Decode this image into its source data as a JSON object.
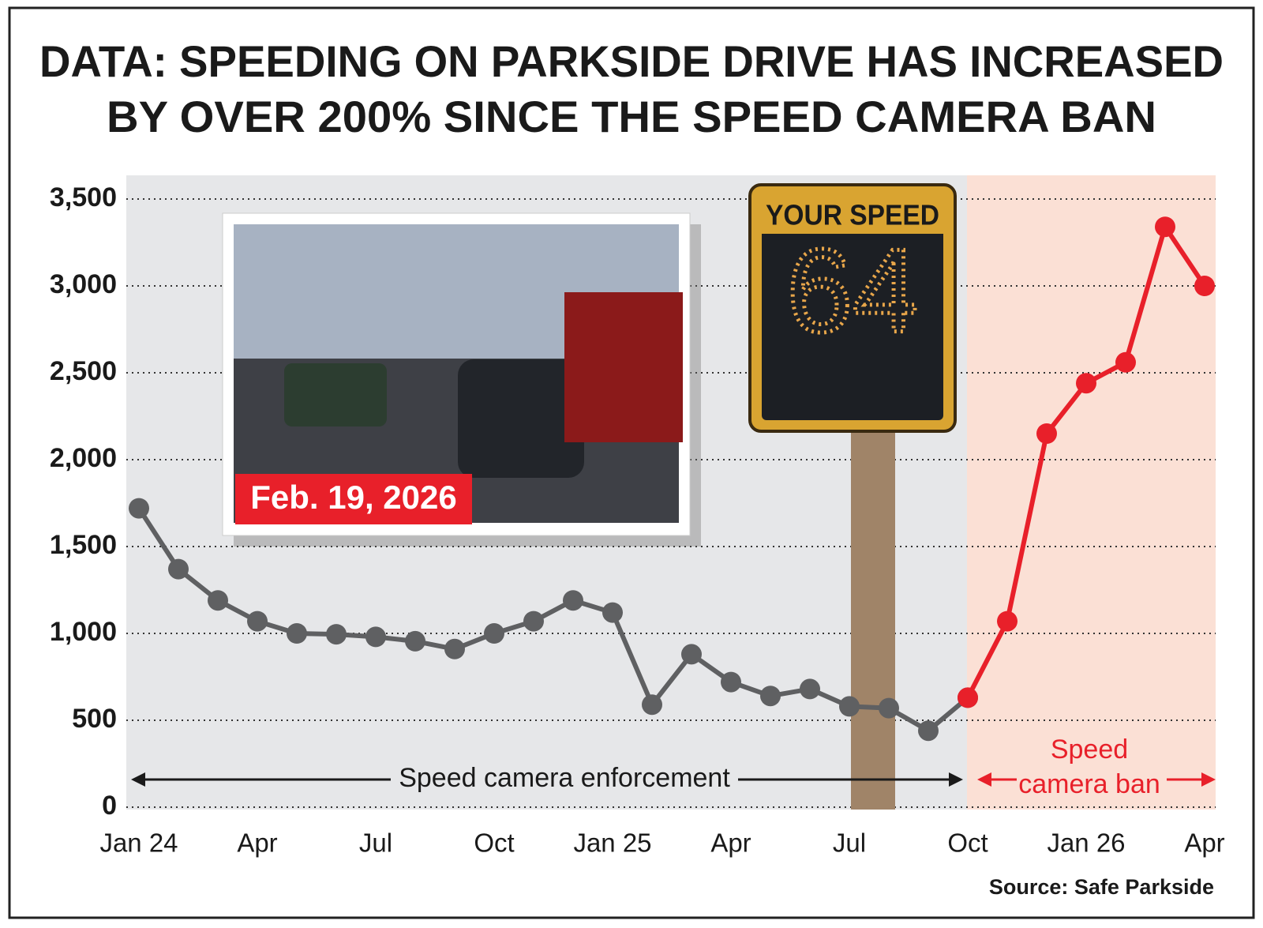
{
  "chart_data": {
    "type": "line",
    "title": [
      "DATA: SPEEDING ON PARKSIDE DRIVE HAS INCREASED",
      "BY OVER 200% SINCE THE SPEED CAMERA BAN"
    ],
    "categories": [
      "Jan 24",
      null,
      null,
      "Apr",
      null,
      null,
      "Jul",
      null,
      null,
      "Oct",
      null,
      null,
      "Jan 25",
      null,
      null,
      "Apr",
      null,
      null,
      "Jul",
      null,
      null,
      "Oct",
      null,
      null,
      "Jan 26",
      null,
      null,
      "Apr"
    ],
    "series": [
      {
        "name": "Speed camera enforcement",
        "color": "#5f6062",
        "values": [
          1720,
          1370,
          1190,
          1070,
          1000,
          995,
          980,
          955,
          910,
          1000,
          1070,
          1190,
          1120,
          590,
          880,
          720,
          640,
          680,
          580,
          570,
          440,
          630,
          null,
          null,
          null,
          null,
          null,
          null
        ]
      },
      {
        "name": "Speed camera ban",
        "color": "#e8202a",
        "values": [
          null,
          null,
          null,
          null,
          null,
          null,
          null,
          null,
          null,
          null,
          null,
          null,
          null,
          null,
          null,
          null,
          null,
          null,
          null,
          null,
          null,
          630,
          1070,
          2150,
          2440,
          2560,
          3340,
          3000
        ]
      }
    ],
    "enforcement_label": "Speed camera enforcement",
    "ban_label": [
      "Speed",
      "camera ban"
    ],
    "photo_caption": "Feb. 19, 2026",
    "sign_text": "YOUR SPEED",
    "sign_speed": "64",
    "source": "Source: Safe Parkside",
    "ylim": [
      0,
      3500
    ],
    "yticks": [
      0,
      500,
      {
        "value": 1000,
        "label": "1,000"
      },
      {
        "value": 1500,
        "label": "1,500"
      },
      {
        "value": 2000,
        "label": "2,000"
      },
      {
        "value": 2500,
        "label": "2,500"
      },
      {
        "value": 3000,
        "label": "3,000"
      },
      {
        "value": 3500,
        "label": "3,500"
      }
    ],
    "grid": true
  }
}
